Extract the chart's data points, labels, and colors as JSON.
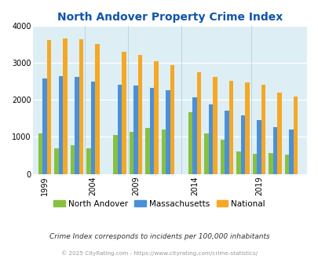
{
  "title": "North Andover Property Crime Index",
  "groups": [
    {
      "year": 1999,
      "na": 1100,
      "ma": 2580,
      "nat": 3610
    },
    {
      "year": 2001,
      "na": 700,
      "ma": 2640,
      "nat": 3660
    },
    {
      "year": 2003,
      "na": 780,
      "ma": 2630,
      "nat": 3640
    },
    {
      "year": 2004,
      "na": 700,
      "ma": 2490,
      "nat": 3510
    },
    {
      "year": 2007,
      "na": 1050,
      "ma": 2400,
      "nat": 3290
    },
    {
      "year": 2009,
      "na": 1130,
      "ma": 2390,
      "nat": 3220
    },
    {
      "year": 2010,
      "na": 1250,
      "ma": 2320,
      "nat": 3050
    },
    {
      "year": 2011,
      "na": 1190,
      "ma": 2260,
      "nat": 2940
    },
    {
      "year": 2014,
      "na": 1660,
      "ma": 2070,
      "nat": 2750
    },
    {
      "year": 2015,
      "na": 1090,
      "ma": 1870,
      "nat": 2620
    },
    {
      "year": 2016,
      "na": 930,
      "ma": 1710,
      "nat": 2520
    },
    {
      "year": 2018,
      "na": 600,
      "ma": 1590,
      "nat": 2480
    },
    {
      "year": 2019,
      "na": 550,
      "ma": 1460,
      "nat": 2400
    },
    {
      "year": 2020,
      "na": 560,
      "ma": 1270,
      "nat": 2200
    },
    {
      "year": 2021,
      "na": 520,
      "ma": 1190,
      "nat": 2100
    }
  ],
  "tick_labels": [
    "1999",
    "2004",
    "2009",
    "2014",
    "2019"
  ],
  "tick_years": [
    1999,
    2004,
    2009,
    2014,
    2019
  ],
  "color_na": "#88c040",
  "color_ma": "#4a90d9",
  "color_nat": "#f5a825",
  "bg_color": "#ddeef5",
  "title_color": "#1155aa",
  "ylim": [
    0,
    4000
  ],
  "yticks": [
    0,
    1000,
    2000,
    3000,
    4000
  ],
  "subtitle": "Crime Index corresponds to incidents per 100,000 inhabitants",
  "footer": "© 2025 CityRating.com - https://www.cityrating.com/crime-statistics/"
}
